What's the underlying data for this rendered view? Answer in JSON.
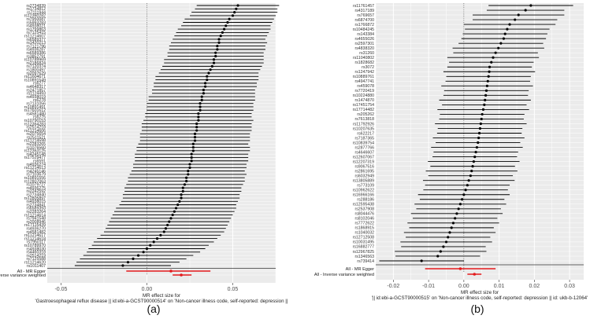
{
  "chart_data": [
    {
      "type": "scatter",
      "panel_label": "(a)",
      "xlabel_lines": [
        "MR effect size for",
        "'Gastroesophageal reflux disease || id:ebi-a-GCST90000514' on 'Non-cancer illness code, self-reported: depression ||"
      ],
      "xlim": [
        -0.058,
        0.075
      ],
      "xticks": [
        -0.05,
        0.0,
        0.05
      ],
      "xtick_labels": [
        "-0.05",
        "0.00",
        "0.05"
      ],
      "summary_labels": [
        "All - MR Egger",
        "All - Inverse variance weighted"
      ],
      "summary": [
        {
          "name": "All - MR Egger",
          "est": 0.014,
          "lo": -0.012,
          "hi": 0.037
        },
        {
          "name": "All - Inverse variance weighted",
          "est": 0.02,
          "lo": 0.015,
          "hi": 0.026
        }
      ],
      "snp_labels": [
        "rs2734839",
        "rs1734812",
        "rs7111944",
        "rs12360282",
        "rs7950087",
        "rs5993283",
        "rs4938021",
        "rs1799863",
        "rs7125415",
        "rs11214607",
        "rs6589377",
        "rs1420213",
        "rs7121796",
        "rs4936287",
        "rs6589386",
        "rs3852791",
        "rs10789969",
        "rs2186824",
        "rs7120374",
        "rs1800497",
        "rs2097629",
        "rs11604671",
        "rs10891549",
        "rs6277",
        "rs4648317",
        "rs2471857",
        "rs1124493",
        "rs4938019",
        "rs6278",
        "rs7131056",
        "rs10891491",
        "rs17601612",
        "rs4581480",
        "rs6275",
        "rs10790153",
        "rs12364283",
        "rs2514218",
        "rs11214606",
        "rs2075654",
        "rs2511521",
        "rs11214598",
        "rs2283265",
        "rs1076560",
        "rs12363125",
        "rs4245148",
        "rs17529477",
        "rs6591",
        "rs4936274",
        "rs11214613",
        "rs4245146",
        "rs7103679",
        "rs10891556",
        "rs12807063",
        "rs1079727",
        "rs4936275",
        "rs2242592",
        "rs2734840",
        "rs12805897",
        "rs4938015",
        "rs2734841",
        "rs6589393",
        "rs2283264",
        "rs11214614",
        "rs7941548",
        "rs2008946",
        "rs17115439",
        "rs4936270",
        "rs4581482",
        "rs11214617",
        "rs11214618",
        "rs7950117",
        "rs10789970",
        "rs4938030",
        "rs4460318",
        "rs2514219",
        "rs7125588",
        "rs11214620",
        "rs1011407"
      ],
      "snp_est": [
        0.053,
        0.052,
        0.051,
        0.05,
        0.048,
        0.047,
        0.046,
        0.045,
        0.044,
        0.043,
        0.042,
        0.042,
        0.041,
        0.041,
        0.04,
        0.04,
        0.039,
        0.039,
        0.038,
        0.037,
        0.036,
        0.035,
        0.035,
        0.034,
        0.034,
        0.033,
        0.033,
        0.032,
        0.032,
        0.031,
        0.031,
        0.031,
        0.03,
        0.03,
        0.03,
        0.029,
        0.029,
        0.029,
        0.028,
        0.028,
        0.028,
        0.027,
        0.027,
        0.027,
        0.026,
        0.026,
        0.026,
        0.025,
        0.025,
        0.024,
        0.024,
        0.023,
        0.023,
        0.022,
        0.021,
        0.021,
        0.02,
        0.02,
        0.019,
        0.018,
        0.017,
        0.016,
        0.015,
        0.014,
        0.013,
        0.012,
        0.011,
        0.01,
        0.008,
        0.006,
        0.004,
        0.002,
        0.0,
        -0.002,
        -0.005,
        -0.008,
        -0.011,
        -0.014
      ],
      "snp_hw": [
        0.024,
        0.024,
        0.025,
        0.025,
        0.026,
        0.026,
        0.026,
        0.027,
        0.027,
        0.027,
        0.027,
        0.028,
        0.028,
        0.028,
        0.028,
        0.028,
        0.029,
        0.029,
        0.029,
        0.029,
        0.029,
        0.03,
        0.03,
        0.03,
        0.03,
        0.03,
        0.03,
        0.031,
        0.031,
        0.031,
        0.031,
        0.031,
        0.031,
        0.031,
        0.032,
        0.032,
        0.032,
        0.032,
        0.032,
        0.032,
        0.032,
        0.032,
        0.033,
        0.033,
        0.033,
        0.033,
        0.033,
        0.033,
        0.033,
        0.033,
        0.034,
        0.034,
        0.034,
        0.034,
        0.034,
        0.034,
        0.034,
        0.034,
        0.034,
        0.034,
        0.035,
        0.035,
        0.035,
        0.035,
        0.035,
        0.035,
        0.035,
        0.035,
        0.035,
        0.035,
        0.035,
        0.034,
        0.034,
        0.033,
        0.032,
        0.031,
        0.03,
        0.028
      ]
    },
    {
      "type": "scatter",
      "panel_label": "(b)",
      "xlabel_lines": [
        "MR effect size for",
        "'|| id:ebi-a-GCST90000515' on 'Non-cancer illness code, self-reported: depression || id: ukb-b-12064'"
      ],
      "xlim": [
        -0.025,
        0.034
      ],
      "xticks": [
        -0.02,
        -0.01,
        0.0,
        0.01,
        0.02,
        0.03
      ],
      "xtick_labels": [
        "-0.02",
        "-0.01",
        "0.00",
        "0.01",
        "0.02",
        "0.03"
      ],
      "summary_labels": [
        "All - MR Egger",
        "All - Inverse variance weighted"
      ],
      "summary": [
        {
          "name": "All - MR Egger",
          "est": -0.001,
          "lo": -0.011,
          "hi": 0.009
        },
        {
          "name": "All - Inverse variance weighted",
          "est": 0.003,
          "lo": 0.001,
          "hi": 0.005
        }
      ],
      "snp_labels": [
        "rs11761457",
        "rs4317189",
        "rs769657",
        "rs6874700",
        "rs1766872",
        "rs10484245",
        "rs143384",
        "rs4655026",
        "rs2597301",
        "rs4838320",
        "rs31260",
        "rs11040802",
        "rs1828682",
        "rs3072",
        "rs1247942",
        "rs10889761",
        "rs4947741",
        "rs459078",
        "rs7720419",
        "rs10224880",
        "rs1474870",
        "rs17451754",
        "rs17714482",
        "rs205262",
        "rs7613818",
        "rs11792926",
        "rs10207635",
        "rs622217",
        "rs7187365",
        "rs10839754",
        "rs2877766",
        "rs4646607",
        "rs12607067",
        "rs12207319",
        "rs9067516",
        "rs2861695",
        "rs6032949",
        "rs13805889",
        "rs773109",
        "rs10962622",
        "rs16966166",
        "rs288186",
        "rs12595438",
        "rs2537908",
        "rs8044476",
        "rs8102046",
        "rs7772622",
        "rs1868915",
        "rs1040032",
        "rs12712508",
        "rs10031495",
        "rs16882777",
        "rs12967825",
        "rs1346563",
        "rs739414"
      ],
      "snp_est": [
        0.019,
        0.0175,
        0.0155,
        0.0145,
        0.013,
        0.0123,
        0.0117,
        0.0113,
        0.0105,
        0.0098,
        0.009,
        0.0083,
        0.0078,
        0.0073,
        0.0072,
        0.007,
        0.0068,
        0.0066,
        0.0064,
        0.0062,
        0.006,
        0.0058,
        0.0055,
        0.0052,
        0.005,
        0.0048,
        0.0046,
        0.0044,
        0.0042,
        0.004,
        0.0037,
        0.0034,
        0.0031,
        0.0028,
        0.0025,
        0.0022,
        0.0019,
        0.0014,
        0.001,
        0.0005,
        0.0,
        -0.0005,
        -0.001,
        -0.0015,
        -0.002,
        -0.0025,
        -0.003,
        -0.0035,
        -0.004,
        -0.0045,
        -0.005,
        -0.0058,
        -0.0066,
        -0.0074,
        -0.012
      ],
      "snp_hw": [
        0.012,
        0.011,
        0.013,
        0.012,
        0.013,
        0.012,
        0.012,
        0.012,
        0.012,
        0.013,
        0.012,
        0.013,
        0.012,
        0.012,
        0.013,
        0.012,
        0.012,
        0.013,
        0.012,
        0.012,
        0.013,
        0.012,
        0.013,
        0.012,
        0.012,
        0.013,
        0.012,
        0.012,
        0.013,
        0.012,
        0.013,
        0.012,
        0.012,
        0.013,
        0.012,
        0.013,
        0.012,
        0.013,
        0.012,
        0.012,
        0.013,
        0.012,
        0.013,
        0.012,
        0.013,
        0.012,
        0.013,
        0.012,
        0.013,
        0.012,
        0.013,
        0.012,
        0.013,
        0.012,
        0.012
      ]
    }
  ]
}
